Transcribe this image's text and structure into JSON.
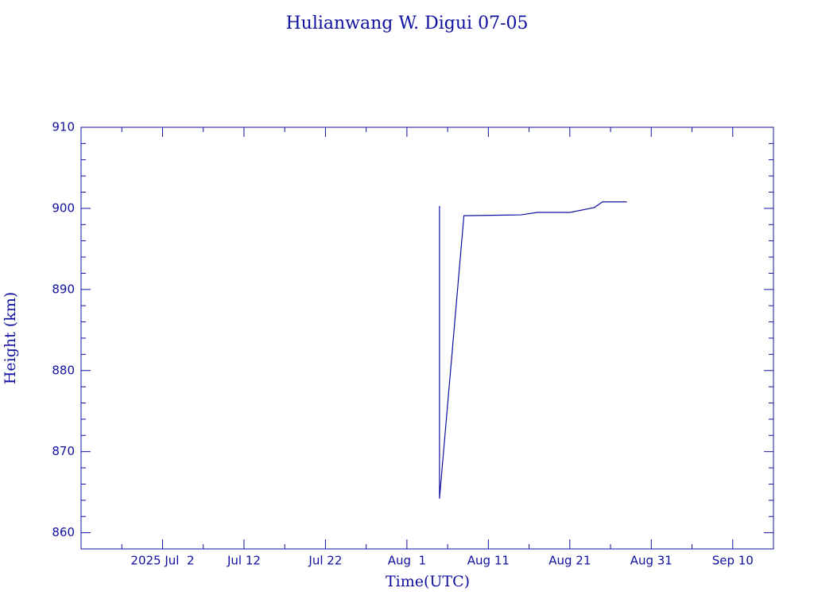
{
  "chart_data": {
    "type": "line",
    "title": "Hulianwang W. Digui 07-05",
    "x_label": "Time(UTC)",
    "y_label": "Height (km)",
    "x": [
      "2025-08-05",
      "2025-08-05",
      "2025-08-05",
      "2025-08-08",
      "2025-08-15",
      "2025-08-17",
      "2025-08-21",
      "2025-08-24",
      "2025-08-25",
      "2025-08-28"
    ],
    "series": [
      {
        "name": "Height",
        "color": "#1010a0",
        "values": [
          900.3,
          877,
          864.2,
          899.1,
          899.2,
          899.5,
          899.5,
          900.1,
          900.8,
          900.8
        ]
      }
    ],
    "xlim": [
      "2025-06-22",
      "2025-09-15"
    ],
    "xticks": [
      {
        "value": "2025-07-02",
        "label": "2025 Jul  2"
      },
      {
        "value": "2025-07-12",
        "label": "Jul 12"
      },
      {
        "value": "2025-07-22",
        "label": "Jul 22"
      },
      {
        "value": "2025-08-01",
        "label": "Aug  1"
      },
      {
        "value": "2025-08-11",
        "label": "Aug 11"
      },
      {
        "value": "2025-08-21",
        "label": "Aug 21"
      },
      {
        "value": "2025-08-31",
        "label": "Aug 31"
      },
      {
        "value": "2025-09-10",
        "label": "Sep 10"
      }
    ],
    "ylim": [
      858,
      910
    ],
    "yticks": [
      860,
      870,
      880,
      890,
      900,
      910
    ],
    "grid": false
  }
}
